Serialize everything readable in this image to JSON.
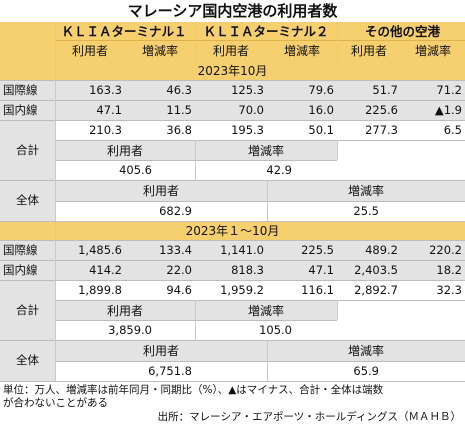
{
  "title": "マレーシア国内空港の利用者数",
  "airports": [
    "ＫＬＩＡターミナル１",
    "ＫＬＩＡターミナル２",
    "その他の空港"
  ],
  "col_users": "利用者",
  "col_rate": "増減率",
  "row_intl": "国際線",
  "row_dom": "国内線",
  "row_total": "合計",
  "row_all": "全体",
  "sections": [
    {
      "heading": "2023年10月",
      "intl": [
        "163.3",
        "46.3",
        "125.3",
        "79.6",
        "51.7",
        "71.2"
      ],
      "dom": [
        "47.1",
        "11.5",
        "70.0",
        "16.0",
        "225.6",
        "▲1.9"
      ],
      "sub": [
        "210.3",
        "36.8",
        "195.3",
        "50.1",
        "277.3",
        "6.5"
      ],
      "klia_total_users": "405.6",
      "klia_total_rate": "42.9",
      "all_users": "682.9",
      "all_rate": "25.5"
    },
    {
      "heading": "2023年１～10月",
      "intl": [
        "1,485.6",
        "133.4",
        "1,141.0",
        "225.5",
        "489.2",
        "220.2"
      ],
      "dom": [
        "414.2",
        "22.0",
        "818.3",
        "47.1",
        "2,403.5",
        "18.2"
      ],
      "sub": [
        "1,899.8",
        "94.6",
        "1,959.2",
        "116.1",
        "2,892.7",
        "32.3"
      ],
      "klia_total_users": "3,859.0",
      "klia_total_rate": "105.0",
      "all_users": "6,751.8",
      "all_rate": "65.9"
    }
  ],
  "note_line1": "単位：万人、増減率は前年同月・同期比（%）、▲はマイナス、合計・全体は端数",
  "note_line2": "が合わないことがある",
  "source": "出所：マレーシア・エアポーツ・ホールディングス（ＭＡＨＢ）",
  "colors": {
    "header_yellow": "#f6cf6f",
    "row_gray": "#e3e3e3"
  }
}
